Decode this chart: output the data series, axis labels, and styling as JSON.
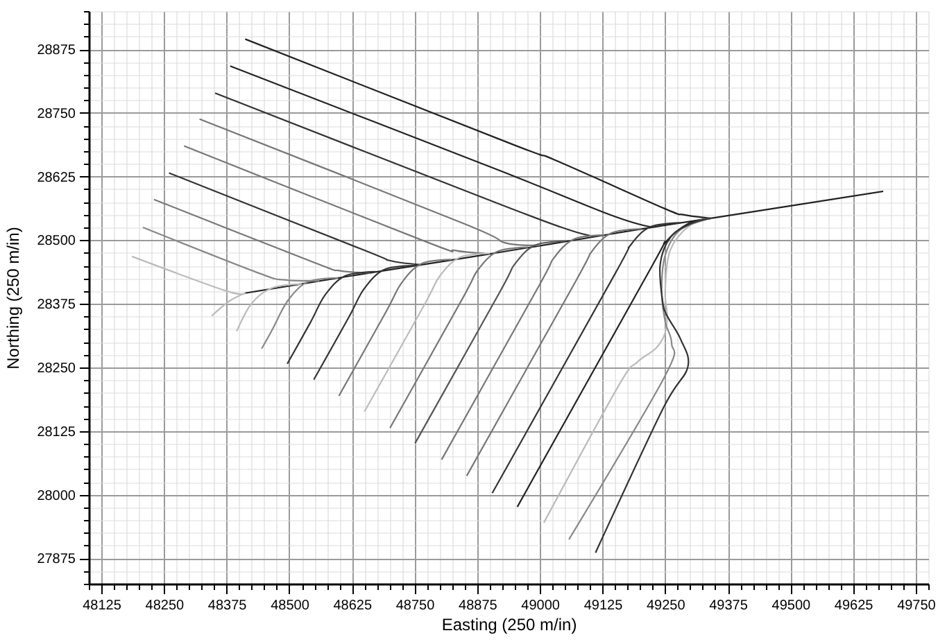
{
  "chart_data": {
    "type": "line",
    "xlabel": "Easting (250 m/in)",
    "ylabel": "Northing (250 m/in)",
    "grid": true,
    "xlim": [
      48100,
      49775
    ],
    "ylim": [
      27825,
      28950
    ],
    "xticks": [
      {
        "value": 48100,
        "label": null
      },
      48125,
      {
        "value": 48150,
        "label": null
      },
      {
        "value": 48175,
        "label": null
      },
      {
        "value": 48200,
        "label": null
      },
      {
        "value": 48225,
        "label": null
      },
      48250,
      {
        "value": 48275,
        "label": null
      },
      {
        "value": 48300,
        "label": null
      },
      {
        "value": 48325,
        "label": null
      },
      {
        "value": 48350,
        "label": null
      },
      48375,
      {
        "value": 48400,
        "label": null
      },
      {
        "value": 48425,
        "label": null
      },
      {
        "value": 48450,
        "label": null
      },
      {
        "value": 48475,
        "label": null
      },
      48500,
      {
        "value": 48525,
        "label": null
      },
      {
        "value": 48550,
        "label": null
      },
      {
        "value": 48575,
        "label": null
      },
      {
        "value": 48600,
        "label": null
      },
      48625,
      {
        "value": 48650,
        "label": null
      },
      {
        "value": 48675,
        "label": null
      },
      {
        "value": 48700,
        "label": null
      },
      {
        "value": 48725,
        "label": null
      },
      48750,
      {
        "value": 48775,
        "label": null
      },
      {
        "value": 48800,
        "label": null
      },
      {
        "value": 48825,
        "label": null
      },
      {
        "value": 48850,
        "label": null
      },
      48875,
      {
        "value": 48900,
        "label": null
      },
      {
        "value": 48925,
        "label": null
      },
      {
        "value": 48950,
        "label": null
      },
      {
        "value": 48975,
        "label": null
      },
      49000,
      {
        "value": 49025,
        "label": null
      },
      {
        "value": 49050,
        "label": null
      },
      {
        "value": 49075,
        "label": null
      },
      {
        "value": 49100,
        "label": null
      },
      49125,
      {
        "value": 49150,
        "label": null
      },
      {
        "value": 49175,
        "label": null
      },
      {
        "value": 49200,
        "label": null
      },
      {
        "value": 49225,
        "label": null
      },
      49250,
      {
        "value": 49275,
        "label": null
      },
      {
        "value": 49300,
        "label": null
      },
      {
        "value": 49325,
        "label": null
      },
      {
        "value": 49350,
        "label": null
      },
      49375,
      {
        "value": 49400,
        "label": null
      },
      {
        "value": 49425,
        "label": null
      },
      {
        "value": 49450,
        "label": null
      },
      {
        "value": 49475,
        "label": null
      },
      49500,
      {
        "value": 49525,
        "label": null
      },
      {
        "value": 49550,
        "label": null
      },
      {
        "value": 49575,
        "label": null
      },
      {
        "value": 49600,
        "label": null
      },
      49625,
      {
        "value": 49650,
        "label": null
      },
      {
        "value": 49675,
        "label": null
      },
      {
        "value": 49700,
        "label": null
      },
      {
        "value": 49725,
        "label": null
      },
      49750,
      {
        "value": 49775,
        "label": null
      }
    ],
    "yticks": [
      {
        "value": 27825,
        "label": null
      },
      {
        "value": 27850,
        "label": null
      },
      27875,
      {
        "value": 27900,
        "label": null
      },
      {
        "value": 27925,
        "label": null
      },
      {
        "value": 27950,
        "label": null
      },
      {
        "value": 27975,
        "label": null
      },
      28000,
      {
        "value": 28025,
        "label": null
      },
      {
        "value": 28050,
        "label": null
      },
      {
        "value": 28075,
        "label": null
      },
      {
        "value": 28100,
        "label": null
      },
      28125,
      {
        "value": 28150,
        "label": null
      },
      {
        "value": 28175,
        "label": null
      },
      {
        "value": 28200,
        "label": null
      },
      {
        "value": 28225,
        "label": null
      },
      28250,
      {
        "value": 28275,
        "label": null
      },
      {
        "value": 28300,
        "label": null
      },
      {
        "value": 28325,
        "label": null
      },
      {
        "value": 28350,
        "label": null
      },
      28375,
      {
        "value": 28400,
        "label": null
      },
      {
        "value": 28425,
        "label": null
      },
      {
        "value": 28450,
        "label": null
      },
      {
        "value": 28475,
        "label": null
      },
      28500,
      {
        "value": 28525,
        "label": null
      },
      {
        "value": 28550,
        "label": null
      },
      {
        "value": 28575,
        "label": null
      },
      {
        "value": 28600,
        "label": null
      },
      28625,
      {
        "value": 28650,
        "label": null
      },
      {
        "value": 28675,
        "label": null
      },
      {
        "value": 28700,
        "label": null
      },
      {
        "value": 28725,
        "label": null
      },
      28750,
      {
        "value": 28775,
        "label": null
      },
      {
        "value": 28800,
        "label": null
      },
      {
        "value": 28825,
        "label": null
      },
      {
        "value": 28850,
        "label": null
      },
      28875,
      {
        "value": 28900,
        "label": null
      },
      {
        "value": 28925,
        "label": null
      },
      {
        "value": 28950,
        "label": null
      }
    ],
    "series": [
      {
        "color": "#222222",
        "x": [
          48412,
          48643,
          48753,
          48882,
          48919,
          49111,
          49222,
          49341,
          49685
        ],
        "values": [
          28396,
          28433,
          28450,
          28470,
          28476,
          28507,
          28525,
          28543,
          28596
        ]
      },
      {
        "color": "#222222",
        "x": [
          48412,
          48946,
          49029,
          49249,
          49286,
          49341
        ],
        "values": [
          28895,
          28688,
          28658,
          28562,
          28550,
          28543
        ]
      },
      {
        "color": "#222222",
        "x": [
          48382,
          48919,
          49140,
          49222
        ],
        "values": [
          28842,
          28637,
          28550,
          28526
        ]
      },
      {
        "color": "#333333",
        "x": [
          48352,
          48919,
          49056,
          49111
        ],
        "values": [
          28789,
          28571,
          28521,
          28507
        ]
      },
      {
        "color": "#777777",
        "x": [
          48321,
          48850,
          48930,
          49000
        ],
        "values": [
          28738,
          28532,
          28495,
          28490
        ]
      },
      {
        "color": "#777777",
        "x": [
          48290,
          48770,
          48830,
          48890
        ],
        "values": [
          28685,
          28498,
          28480,
          28474
        ]
      },
      {
        "color": "#333333",
        "x": [
          48260,
          48650,
          48700,
          48760
        ],
        "values": [
          28632,
          28480,
          28460,
          28452
        ]
      },
      {
        "color": "#777777",
        "x": [
          48230,
          48550,
          48600,
          48660
        ],
        "values": [
          28580,
          28456,
          28440,
          28436
        ]
      },
      {
        "color": "#888888",
        "x": [
          48208,
          48440,
          48490,
          48560
        ],
        "values": [
          28525,
          28435,
          28422,
          28420
        ]
      },
      {
        "color": "#bbbbbb",
        "x": [
          48186,
          48372,
          48412
        ],
        "values": [
          28468,
          28401,
          28396
        ]
      },
      {
        "color": "#bbbbbb",
        "x": [
          48345,
          48380,
          48412
        ],
        "values": [
          28351,
          28380,
          28396
        ]
      },
      {
        "color": "#bbbbbb",
        "x": [
          48395,
          48425,
          48465,
          48525
        ],
        "values": [
          28321,
          28376,
          28406,
          28414
        ]
      },
      {
        "color": "#888888",
        "x": [
          48445,
          48467,
          48497,
          48537,
          48597
        ],
        "values": [
          28287,
          28326,
          28381,
          28418,
          28426
        ]
      },
      {
        "color": "#333333",
        "x": [
          48496,
          48542,
          48572,
          48612,
          48672
        ],
        "values": [
          28257,
          28338,
          28393,
          28430,
          28438
        ]
      },
      {
        "color": "#333333",
        "x": [
          48549,
          48619,
          48649,
          48689,
          48749
        ],
        "values": [
          28226,
          28349,
          28404,
          28442,
          28450
        ]
      },
      {
        "color": "#777777",
        "x": [
          48599,
          48694,
          48724,
          48764,
          48824
        ],
        "values": [
          28194,
          28361,
          28416,
          28454,
          28462
        ]
      },
      {
        "color": "#bbbbbb",
        "x": [
          48650,
          48770,
          48800,
          48840,
          48900
        ],
        "values": [
          28163,
          28374,
          28429,
          28466,
          28474
        ]
      },
      {
        "color": "#777777",
        "x": [
          48701,
          48846,
          48876,
          48916,
          48976
        ],
        "values": [
          28131,
          28386,
          28441,
          28478,
          28486
        ]
      },
      {
        "color": "#555555",
        "x": [
          48751,
          48920,
          48950,
          48990,
          49050
        ],
        "values": [
          28101,
          28398,
          28453,
          28490,
          28498
        ]
      },
      {
        "color": "#777777",
        "x": [
          48804,
          48998,
          49028,
          49068,
          49128
        ],
        "values": [
          28069,
          28410,
          28465,
          28502,
          28510
        ]
      },
      {
        "color": "#777777",
        "x": [
          48854,
          49073,
          49103,
          49143,
          49203
        ],
        "values": [
          28037,
          28422,
          28477,
          28514,
          28522
        ]
      },
      {
        "color": "#333333",
        "x": [
          48905,
          49150,
          49180,
          49220,
          49280
        ],
        "values": [
          28003,
          28434,
          28489,
          28526,
          28534
        ]
      },
      {
        "color": "#222222",
        "x": [
          48955,
          49222,
          49250,
          49295,
          49341
        ],
        "values": [
          27976,
          28446,
          28495,
          28532,
          28543
        ]
      },
      {
        "color": "#bbbbbb",
        "x": [
          49008,
          49157,
          49194,
          49231,
          49249,
          49254,
          49250,
          49260,
          49300,
          49341
        ],
        "values": [
          27945,
          28214,
          28260,
          28287,
          28315,
          28351,
          28400,
          28480,
          28530,
          28543
        ]
      },
      {
        "color": "#888888",
        "x": [
          49058,
          49249,
          49263,
          49250,
          49243,
          49250,
          49280,
          49341
        ],
        "values": [
          27912,
          28232,
          28296,
          28340,
          28400,
          28470,
          28520,
          28543
        ]
      },
      {
        "color": "#333333",
        "x": [
          49111,
          49245,
          49295,
          49281,
          49254,
          49245,
          49240,
          49260,
          49300,
          49341
        ],
        "values": [
          27886,
          28168,
          28250,
          28305,
          28351,
          28379,
          28452,
          28505,
          28532,
          28543
        ]
      }
    ]
  }
}
